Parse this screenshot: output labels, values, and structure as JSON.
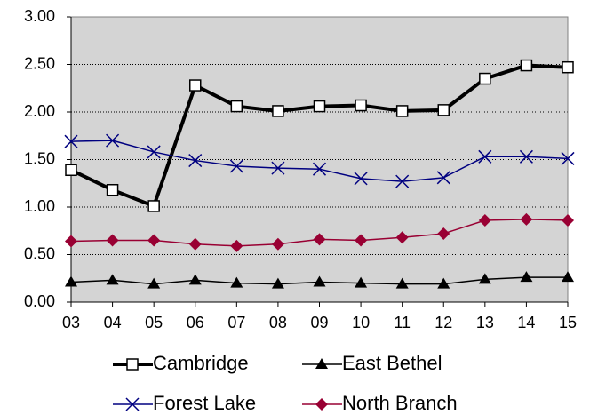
{
  "chart_data": {
    "type": "line",
    "categories": [
      "03",
      "04",
      "05",
      "06",
      "07",
      "08",
      "09",
      "10",
      "11",
      "12",
      "13",
      "14",
      "15"
    ],
    "ylim": [
      0,
      3
    ],
    "yticks": [
      {
        "value": 0,
        "label": "0.00"
      },
      {
        "value": 0.5,
        "label": "0.50"
      },
      {
        "value": 1,
        "label": "1.00"
      },
      {
        "value": 1.5,
        "label": "1.50"
      },
      {
        "value": 2,
        "label": "2.00"
      },
      {
        "value": 2.5,
        "label": "2.50"
      },
      {
        "value": 3,
        "label": "3.00"
      }
    ],
    "grid": true,
    "legend": "bottom",
    "series": [
      {
        "name": "Cambridge",
        "color": "#000000",
        "marker": "square",
        "values": [
          1.39,
          1.18,
          1.01,
          2.28,
          2.06,
          2.01,
          2.06,
          2.07,
          2.01,
          2.02,
          2.35,
          2.49,
          2.47
        ]
      },
      {
        "name": "East Bethel",
        "color": "#000000",
        "marker": "triangle",
        "values": [
          0.21,
          0.23,
          0.19,
          0.23,
          0.2,
          0.19,
          0.21,
          0.2,
          0.19,
          0.19,
          0.24,
          0.26,
          0.26
        ]
      },
      {
        "name": "Forest Lake",
        "color": "#000080",
        "marker": "x",
        "values": [
          1.69,
          1.7,
          1.58,
          1.49,
          1.43,
          1.41,
          1.4,
          1.3,
          1.27,
          1.31,
          1.53,
          1.53,
          1.51
        ]
      },
      {
        "name": "North Branch",
        "color": "#990033",
        "marker": "diamond",
        "values": [
          0.64,
          0.65,
          0.65,
          0.61,
          0.59,
          0.61,
          0.66,
          0.65,
          0.68,
          0.72,
          0.86,
          0.87,
          0.86
        ]
      }
    ]
  }
}
